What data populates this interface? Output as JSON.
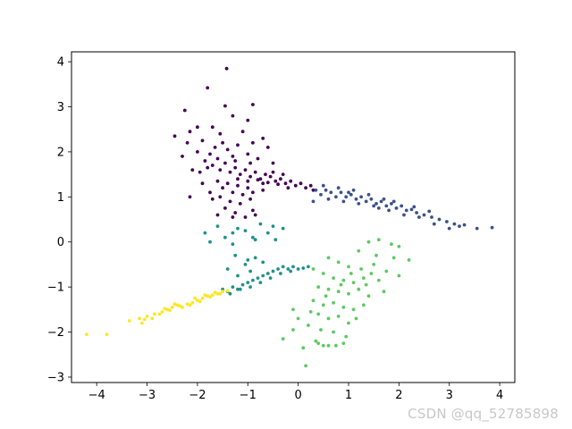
{
  "watermark": "CSDN @qq_52785898",
  "chart_data": {
    "type": "scatter",
    "title": "",
    "xlabel": "",
    "ylabel": "",
    "xlim": [
      -4.5,
      4.3
    ],
    "ylim": [
      -3.12,
      4.22
    ],
    "xticks": [
      -4,
      -3,
      -2,
      -1,
      0,
      1,
      2,
      3,
      4
    ],
    "yticks": [
      -3,
      -2,
      -1,
      0,
      1,
      2,
      3,
      4
    ],
    "grid": false,
    "legend": "none",
    "series": [
      {
        "color": "#440154",
        "points": [
          [
            -1.42,
            3.85
          ],
          [
            -1.8,
            3.42
          ],
          [
            -1.45,
            3.02
          ],
          [
            -2.25,
            2.92
          ],
          [
            -1.3,
            2.8
          ],
          [
            -0.9,
            3.05
          ],
          [
            -1.0,
            2.7
          ],
          [
            -2.45,
            2.35
          ],
          [
            -2.15,
            2.45
          ],
          [
            -2.0,
            2.55
          ],
          [
            -1.7,
            2.55
          ],
          [
            -1.55,
            2.4
          ],
          [
            -1.1,
            2.45
          ],
          [
            -0.7,
            2.3
          ],
          [
            -2.2,
            2.2
          ],
          [
            -1.9,
            2.25
          ],
          [
            -1.5,
            2.2
          ],
          [
            -1.2,
            2.15
          ],
          [
            -1.4,
            2.05
          ],
          [
            -0.9,
            2.2
          ],
          [
            -0.6,
            2.1
          ],
          [
            -2.0,
            2.0
          ],
          [
            -1.75,
            1.95
          ],
          [
            -1.6,
            1.85
          ],
          [
            -1.3,
            1.9
          ],
          [
            -1.0,
            1.95
          ],
          [
            -0.8,
            1.85
          ],
          [
            -0.5,
            1.75
          ],
          [
            -2.1,
            1.6
          ],
          [
            -1.95,
            1.55
          ],
          [
            -1.8,
            1.65
          ],
          [
            -1.7,
            1.7
          ],
          [
            -1.55,
            1.6
          ],
          [
            -1.45,
            1.75
          ],
          [
            -1.35,
            1.55
          ],
          [
            -1.25,
            1.65
          ],
          [
            -1.15,
            1.5
          ],
          [
            -1.05,
            1.6
          ],
          [
            -0.95,
            1.45
          ],
          [
            -0.85,
            1.55
          ],
          [
            -0.75,
            1.4
          ],
          [
            -0.65,
            1.5
          ],
          [
            -0.55,
            1.45
          ],
          [
            -0.45,
            1.35
          ],
          [
            -0.35,
            1.4
          ],
          [
            -0.25,
            1.3
          ],
          [
            -0.15,
            1.35
          ],
          [
            -0.05,
            1.25
          ],
          [
            0.05,
            1.3
          ],
          [
            0.15,
            1.2
          ],
          [
            0.25,
            1.25
          ],
          [
            0.3,
            1.15
          ],
          [
            -0.2,
            1.2
          ],
          [
            -0.4,
            1.28
          ],
          [
            -0.6,
            1.32
          ],
          [
            -0.8,
            1.38
          ],
          [
            -1.6,
            1.35
          ],
          [
            -1.5,
            1.2
          ],
          [
            -1.4,
            1.3
          ],
          [
            -1.3,
            1.1
          ],
          [
            -1.2,
            1.25
          ],
          [
            -1.1,
            1.05
          ],
          [
            -1.0,
            1.2
          ],
          [
            -0.9,
            1.1
          ],
          [
            -0.7,
            1.15
          ],
          [
            -1.55,
            1.0
          ],
          [
            -1.35,
            0.9
          ],
          [
            -1.15,
            0.85
          ],
          [
            -0.95,
            0.95
          ],
          [
            -1.7,
            0.95
          ],
          [
            -1.45,
            0.75
          ],
          [
            -1.25,
            0.65
          ],
          [
            -0.9,
            0.7
          ],
          [
            -1.3,
            0.55
          ],
          [
            -1.05,
            0.55
          ],
          [
            -0.85,
            0.6
          ],
          [
            -1.6,
            0.6
          ],
          [
            -2.15,
            1.0
          ],
          [
            -1.9,
            1.3
          ],
          [
            -1.75,
            1.1
          ],
          [
            -0.7,
            1.3
          ],
          [
            -0.5,
            1.55
          ],
          [
            -0.3,
            1.5
          ],
          [
            -1.0,
            1.35
          ],
          [
            -1.2,
            1.4
          ],
          [
            -1.85,
            1.8
          ],
          [
            -1.25,
            1.8
          ],
          [
            -0.95,
            1.75
          ],
          [
            -1.65,
            2.1
          ],
          [
            -2.3,
            1.9
          ]
        ]
      },
      {
        "color": "#3b528b",
        "points": [
          [
            0.35,
            1.15
          ],
          [
            0.45,
            1.05
          ],
          [
            0.55,
            1.15
          ],
          [
            0.65,
            1.1
          ],
          [
            0.75,
            1.0
          ],
          [
            0.85,
            1.1
          ],
          [
            0.95,
            1.0
          ],
          [
            1.05,
            1.05
          ],
          [
            1.15,
            0.95
          ],
          [
            1.25,
            1.0
          ],
          [
            1.35,
            0.9
          ],
          [
            1.45,
            0.95
          ],
          [
            1.55,
            0.85
          ],
          [
            1.65,
            0.9
          ],
          [
            1.75,
            0.8
          ],
          [
            1.85,
            0.85
          ],
          [
            1.95,
            0.75
          ],
          [
            2.05,
            0.8
          ],
          [
            2.15,
            0.7
          ],
          [
            2.25,
            0.72
          ],
          [
            2.35,
            0.65
          ],
          [
            2.5,
            0.6
          ],
          [
            2.65,
            0.55
          ],
          [
            2.8,
            0.5
          ],
          [
            2.95,
            0.45
          ],
          [
            3.1,
            0.4
          ],
          [
            3.3,
            0.38
          ],
          [
            3.55,
            0.3
          ],
          [
            3.85,
            0.32
          ],
          [
            0.6,
            0.95
          ],
          [
            0.9,
            0.9
          ],
          [
            1.2,
            0.85
          ],
          [
            1.5,
            0.8
          ],
          [
            1.8,
            0.7
          ],
          [
            2.1,
            0.6
          ],
          [
            2.4,
            0.55
          ],
          [
            2.7,
            0.4
          ],
          [
            3.0,
            0.3
          ],
          [
            3.2,
            0.35
          ],
          [
            1.0,
            1.1
          ],
          [
            1.4,
            1.05
          ],
          [
            1.7,
            0.95
          ],
          [
            0.5,
            1.25
          ],
          [
            0.8,
            1.2
          ],
          [
            1.1,
            1.15
          ],
          [
            2.3,
            0.78
          ],
          [
            2.6,
            0.68
          ],
          [
            1.6,
            0.75
          ],
          [
            1.9,
            0.9
          ],
          [
            0.3,
            0.9
          ]
        ]
      },
      {
        "color": "#21918c",
        "points": [
          [
            -1.85,
            0.2
          ],
          [
            -1.75,
            0.0
          ],
          [
            -1.6,
            0.35
          ],
          [
            -1.45,
            0.1
          ],
          [
            -1.3,
            -0.05
          ],
          [
            -1.2,
            0.3
          ],
          [
            -1.05,
            0.25
          ],
          [
            -0.9,
            0.1
          ],
          [
            -0.75,
            0.4
          ],
          [
            -0.6,
            0.2
          ],
          [
            -0.45,
            0.05
          ],
          [
            -0.3,
            0.3
          ],
          [
            -1.25,
            -0.3
          ],
          [
            -1.05,
            -0.5
          ],
          [
            -0.85,
            -0.35
          ],
          [
            -1.4,
            -0.6
          ],
          [
            -1.2,
            -0.75
          ],
          [
            -0.95,
            -0.65
          ],
          [
            -1.5,
            -1.05
          ],
          [
            -1.4,
            -1.1
          ],
          [
            -1.3,
            -1.0
          ],
          [
            -1.2,
            -1.05
          ],
          [
            -1.1,
            -0.95
          ],
          [
            -1.0,
            -0.9
          ],
          [
            -0.9,
            -0.85
          ],
          [
            -0.8,
            -0.8
          ],
          [
            -0.7,
            -0.75
          ],
          [
            -0.6,
            -0.7
          ],
          [
            -0.5,
            -0.65
          ],
          [
            -0.4,
            -0.6
          ],
          [
            -0.3,
            -0.55
          ],
          [
            -0.2,
            -0.6
          ],
          [
            -0.1,
            -0.55
          ],
          [
            0.0,
            -0.6
          ],
          [
            0.1,
            -0.58
          ],
          [
            0.2,
            -0.55
          ],
          [
            -1.35,
            -1.15
          ],
          [
            -1.15,
            -1.05
          ],
          [
            -0.95,
            -1.0
          ],
          [
            -0.75,
            -0.9
          ],
          [
            -0.55,
            -0.8
          ],
          [
            -0.35,
            -0.7
          ],
          [
            -0.15,
            -0.65
          ],
          [
            -1.0,
            -0.4
          ],
          [
            -0.7,
            -0.45
          ],
          [
            -1.3,
            0.2
          ],
          [
            -0.85,
            0.05
          ],
          [
            -0.5,
            0.35
          ]
        ]
      },
      {
        "color": "#5ec962",
        "points": [
          [
            1.4,
            0.0
          ],
          [
            1.6,
            0.05
          ],
          [
            1.85,
            -0.05
          ],
          [
            2.0,
            -0.1
          ],
          [
            1.2,
            -0.2
          ],
          [
            1.55,
            -0.3
          ],
          [
            1.9,
            -0.35
          ],
          [
            2.2,
            -0.4
          ],
          [
            0.6,
            -0.35
          ],
          [
            0.8,
            -0.45
          ],
          [
            1.0,
            -0.55
          ],
          [
            1.25,
            -0.6
          ],
          [
            1.5,
            -0.5
          ],
          [
            1.75,
            -0.65
          ],
          [
            2.0,
            -0.75
          ],
          [
            0.3,
            -0.6
          ],
          [
            0.5,
            -0.7
          ],
          [
            0.7,
            -0.8
          ],
          [
            0.9,
            -0.85
          ],
          [
            1.1,
            -0.9
          ],
          [
            1.3,
            -0.8
          ],
          [
            1.6,
            -0.85
          ],
          [
            0.4,
            -1.0
          ],
          [
            0.6,
            -1.05
          ],
          [
            0.8,
            -1.1
          ],
          [
            1.0,
            -1.15
          ],
          [
            1.2,
            -1.05
          ],
          [
            1.4,
            -1.2
          ],
          [
            1.7,
            -1.1
          ],
          [
            0.3,
            -1.3
          ],
          [
            0.5,
            -1.4
          ],
          [
            0.7,
            -1.35
          ],
          [
            0.9,
            -1.45
          ],
          [
            1.1,
            -1.5
          ],
          [
            1.3,
            -1.4
          ],
          [
            0.4,
            -1.6
          ],
          [
            0.6,
            -1.7
          ],
          [
            0.8,
            -1.65
          ],
          [
            1.0,
            -1.8
          ],
          [
            1.15,
            -1.7
          ],
          [
            0.2,
            -1.85
          ],
          [
            0.45,
            -1.95
          ],
          [
            0.7,
            -2.0
          ],
          [
            0.95,
            -2.1
          ],
          [
            0.35,
            -2.2
          ],
          [
            0.6,
            -2.3
          ],
          [
            0.9,
            -2.25
          ],
          [
            -0.3,
            -2.15
          ],
          [
            -0.1,
            -1.95
          ],
          [
            0.1,
            -2.35
          ],
          [
            0.5,
            -2.3
          ],
          [
            0.75,
            -2.3
          ],
          [
            0.15,
            -2.75
          ],
          [
            0.4,
            -2.25
          ],
          [
            1.05,
            -0.7
          ],
          [
            0.85,
            -0.95
          ],
          [
            1.35,
            -0.95
          ],
          [
            1.45,
            -0.7
          ],
          [
            0.55,
            -1.2
          ],
          [
            0.25,
            -1.55
          ],
          [
            0.0,
            -1.7
          ],
          [
            -0.1,
            -1.5
          ]
        ]
      },
      {
        "color": "#fde725",
        "points": [
          [
            -4.2,
            -2.05
          ],
          [
            -3.8,
            -2.05
          ],
          [
            -3.35,
            -1.75
          ],
          [
            -3.15,
            -1.7
          ],
          [
            -3.1,
            -1.8
          ],
          [
            -3.0,
            -1.65
          ],
          [
            -2.9,
            -1.7
          ],
          [
            -2.85,
            -1.6
          ],
          [
            -2.7,
            -1.55
          ],
          [
            -2.6,
            -1.5
          ],
          [
            -2.5,
            -1.45
          ],
          [
            -2.4,
            -1.4
          ],
          [
            -2.3,
            -1.45
          ],
          [
            -2.2,
            -1.38
          ],
          [
            -2.1,
            -1.35
          ],
          [
            -2.0,
            -1.3
          ],
          [
            -1.9,
            -1.25
          ],
          [
            -1.8,
            -1.2
          ],
          [
            -1.7,
            -1.18
          ],
          [
            -1.6,
            -1.15
          ],
          [
            -1.5,
            -1.1
          ],
          [
            -1.4,
            -1.08
          ],
          [
            -2.75,
            -1.6
          ],
          [
            -2.55,
            -1.52
          ],
          [
            -2.35,
            -1.42
          ],
          [
            -2.15,
            -1.4
          ],
          [
            -1.95,
            -1.32
          ],
          [
            -1.75,
            -1.22
          ],
          [
            -1.55,
            -1.15
          ],
          [
            -2.45,
            -1.38
          ],
          [
            -2.05,
            -1.25
          ],
          [
            -1.85,
            -1.18
          ],
          [
            -1.65,
            -1.12
          ],
          [
            -3.05,
            -1.72
          ],
          [
            -2.65,
            -1.48
          ]
        ]
      }
    ]
  }
}
